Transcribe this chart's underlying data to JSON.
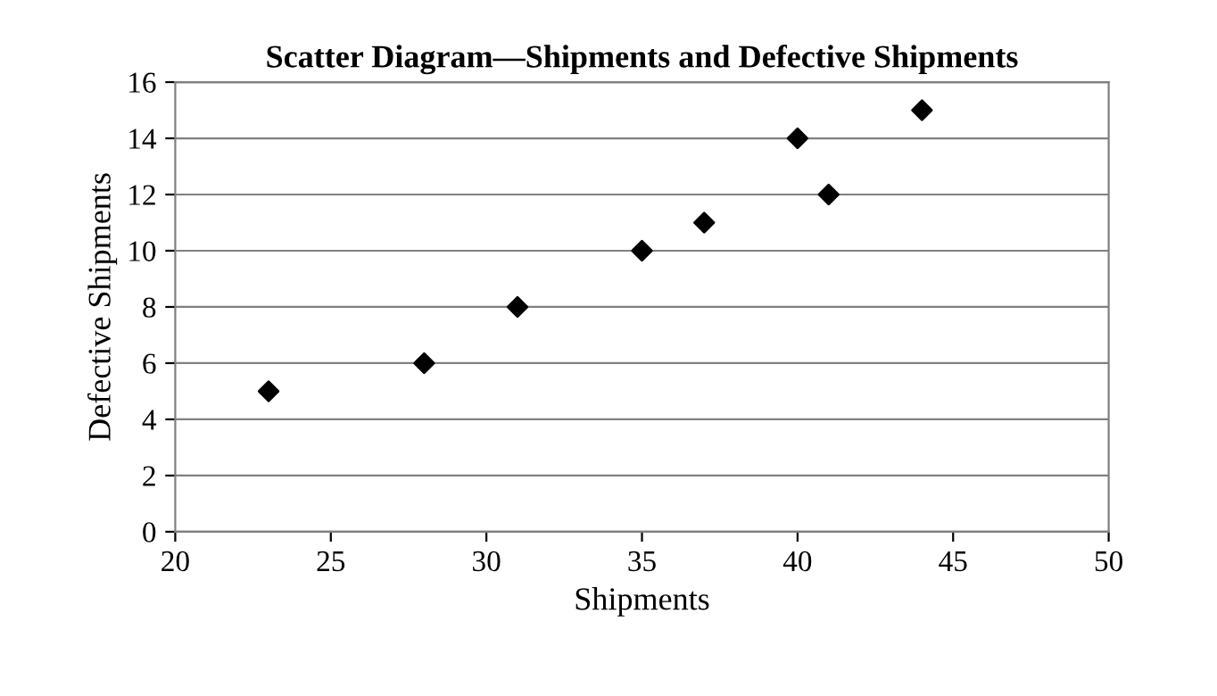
{
  "chart_data": {
    "type": "scatter",
    "title": "Scatter Diagram—Shipments and Defective Shipments",
    "xlabel": "Shipments",
    "ylabel": "Defective Shipments",
    "x": [
      23,
      28,
      31,
      35,
      37,
      40,
      41,
      44
    ],
    "values": [
      5,
      6,
      8,
      10,
      11,
      14,
      12,
      15
    ],
    "color": "#000000",
    "marker": "diamond",
    "xlim": [
      20,
      50
    ],
    "xticks": [
      20,
      25,
      30,
      35,
      40,
      45,
      50
    ],
    "ylim": [
      0,
      16
    ],
    "yticks": [
      0,
      2,
      4,
      6,
      8,
      10,
      12,
      14,
      16
    ],
    "grid": "y"
  }
}
